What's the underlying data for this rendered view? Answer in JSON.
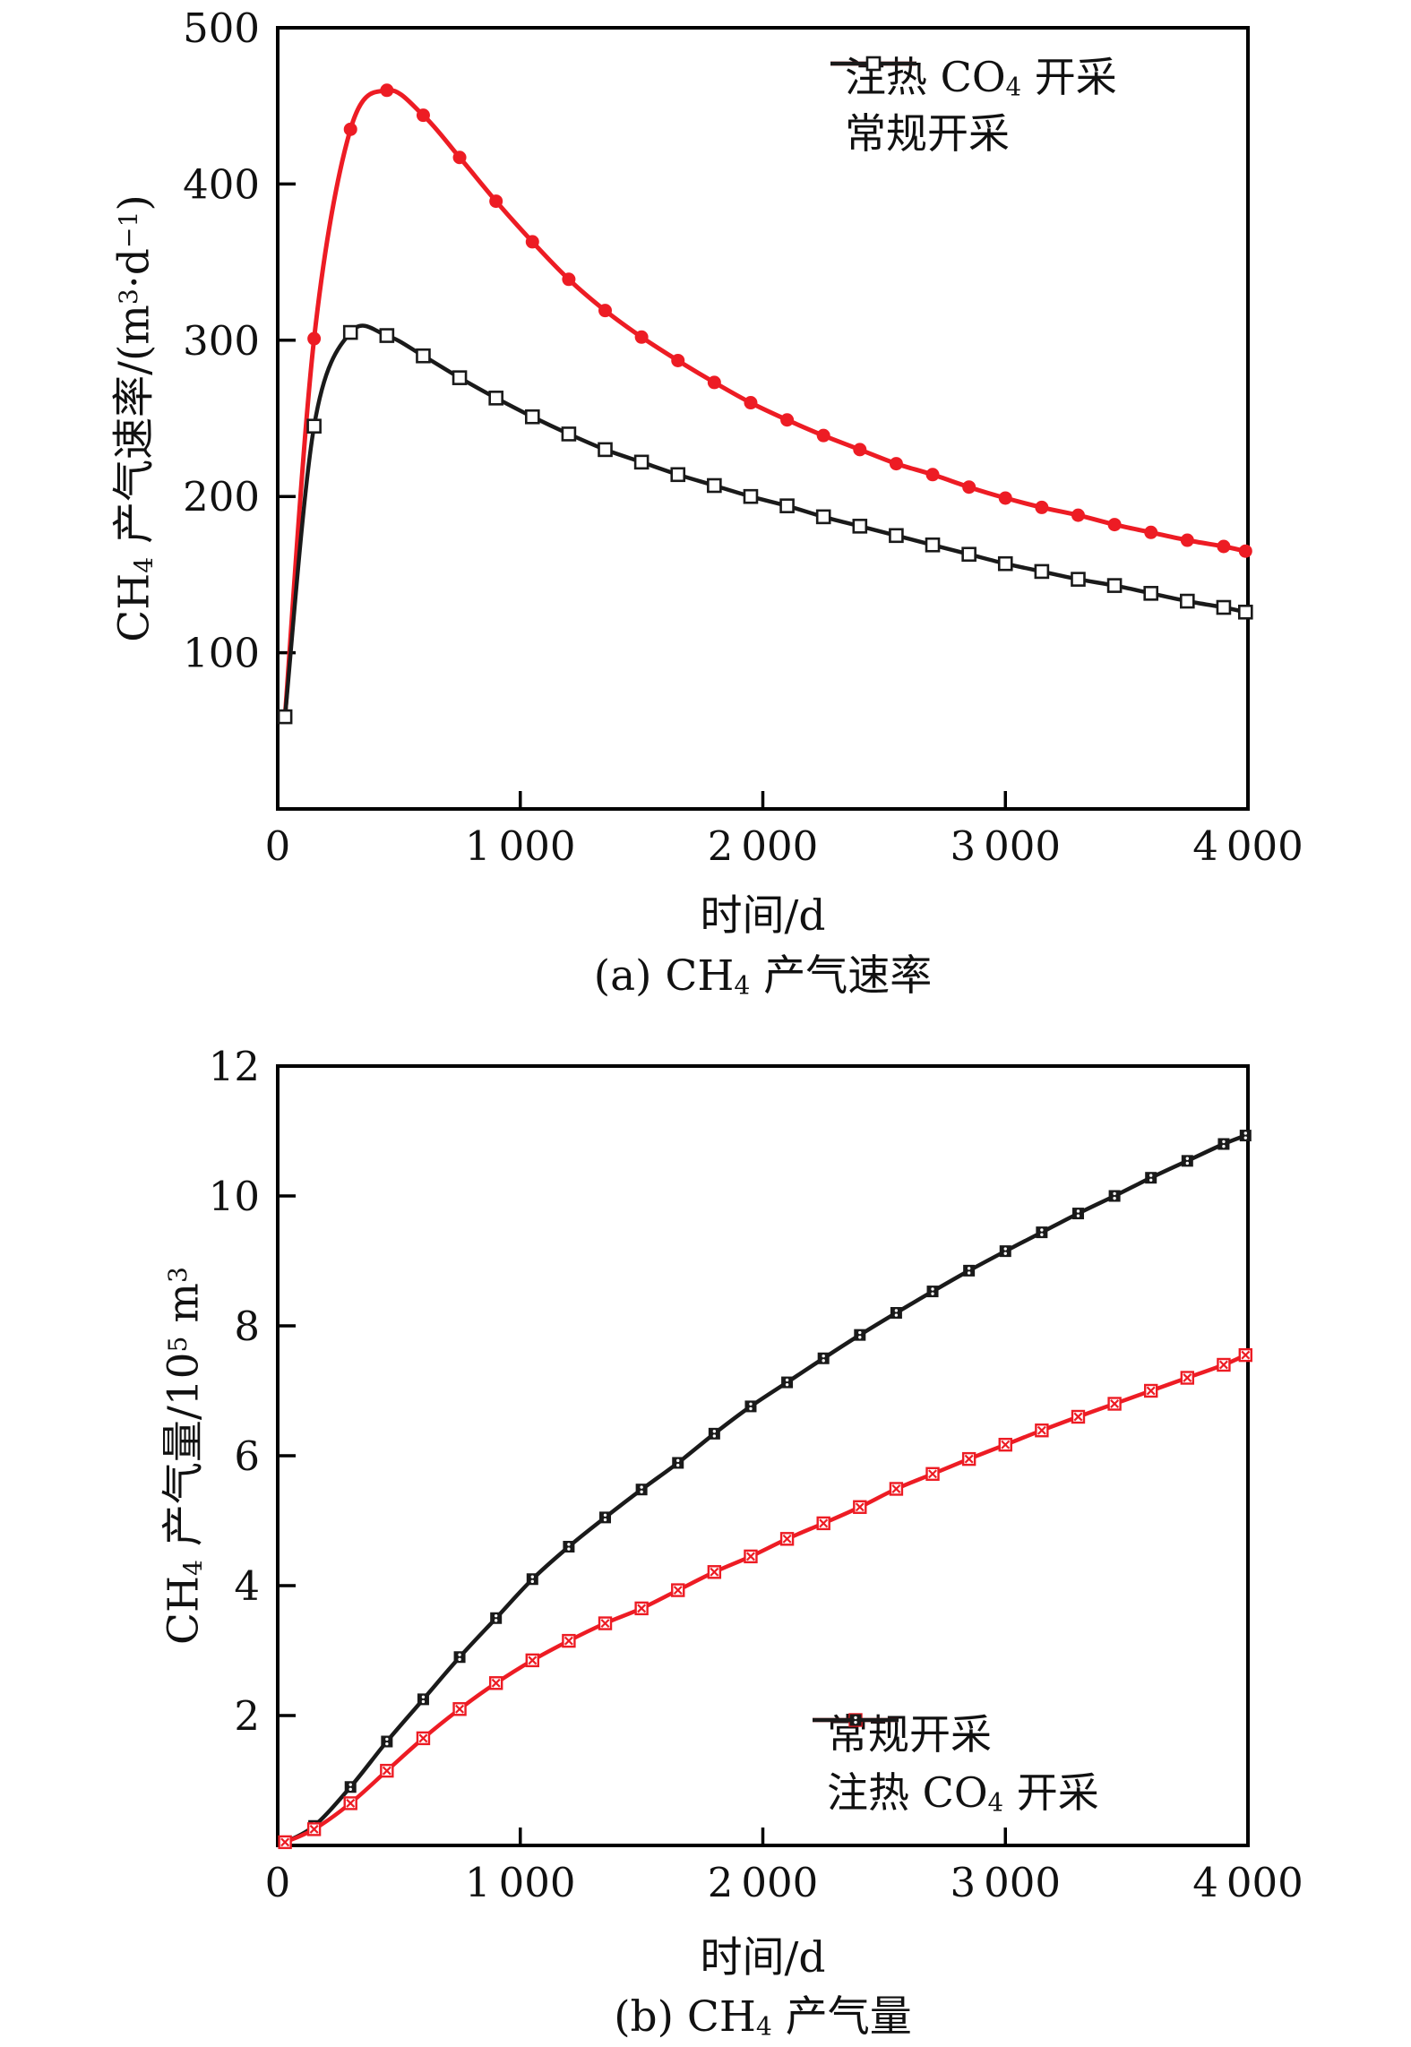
{
  "page": {
    "background": "#ffffff"
  },
  "colors": {
    "series_red": "#ed1c24",
    "series_black": "#1a1a1a",
    "axis": "#000000"
  },
  "chart_data": [
    {
      "id": "a",
      "type": "line",
      "caption_parts": [
        {
          "t": "(a) CH"
        },
        {
          "t": "4",
          "sub": true
        },
        {
          "t": " 产气速率"
        }
      ],
      "xlabel": "时间/d",
      "ylabel_parts": [
        {
          "t": "CH"
        },
        {
          "t": "4",
          "sub": true
        },
        {
          "t": " 产气速率/(m"
        },
        {
          "t": "3",
          "sup": true
        },
        {
          "t": "·d"
        },
        {
          "t": "−1",
          "sup": true
        },
        {
          "t": ")"
        }
      ],
      "xlim": [
        0,
        4000
      ],
      "ylim": [
        0,
        500
      ],
      "x_ticks": [
        {
          "v": 0,
          "label": "0"
        },
        {
          "v": 1000,
          "label": "1 000"
        },
        {
          "v": 2000,
          "label": "2 000"
        },
        {
          "v": 3000,
          "label": "3 000"
        },
        {
          "v": 4000,
          "label": "4 000"
        }
      ],
      "y_ticks": [
        {
          "v": 100,
          "label": "100"
        },
        {
          "v": 200,
          "label": "200"
        },
        {
          "v": 300,
          "label": "300"
        },
        {
          "v": 400,
          "label": "400"
        },
        {
          "v": 500,
          "label": "500"
        }
      ],
      "legend": {
        "position": "top-right",
        "entries": [
          {
            "series": "heated",
            "label_parts": [
              {
                "t": "注热 CO"
              },
              {
                "t": "4",
                "sub": true
              },
              {
                "t": " 开采"
              }
            ]
          },
          {
            "series": "conventional",
            "label_parts": [
              {
                "t": "常规开采"
              }
            ]
          }
        ]
      },
      "series": [
        {
          "name": "heated",
          "color": "#ed1c24",
          "marker": "circle-filled",
          "line_width": 5,
          "x": [
            30,
            150,
            300,
            450,
            600,
            750,
            900,
            1050,
            1200,
            1350,
            1500,
            1650,
            1800,
            1950,
            2100,
            2250,
            2400,
            2550,
            2700,
            2850,
            3000,
            3150,
            3300,
            3450,
            3600,
            3750,
            3900,
            3990
          ],
          "y": [
            59,
            301,
            435,
            460,
            444,
            417,
            389,
            363,
            339,
            319,
            302,
            287,
            273,
            260,
            249,
            239,
            230,
            221,
            214,
            206,
            199,
            193,
            188,
            182,
            177,
            172,
            168,
            165
          ]
        },
        {
          "name": "conventional",
          "color": "#1a1a1a",
          "marker": "square-open",
          "line_width": 4.5,
          "x": [
            30,
            150,
            300,
            450,
            600,
            750,
            900,
            1050,
            1200,
            1350,
            1500,
            1650,
            1800,
            1950,
            2100,
            2250,
            2400,
            2550,
            2700,
            2850,
            3000,
            3150,
            3300,
            3450,
            3600,
            3750,
            3900,
            3990
          ],
          "y": [
            59,
            245,
            305,
            303,
            290,
            276,
            263,
            251,
            240,
            230,
            222,
            214,
            207,
            200,
            194,
            187,
            181,
            175,
            169,
            163,
            157,
            152,
            147,
            143,
            138,
            133,
            129,
            126
          ]
        }
      ]
    },
    {
      "id": "b",
      "type": "line",
      "caption_parts": [
        {
          "t": "(b) CH"
        },
        {
          "t": "4",
          "sub": true
        },
        {
          "t": " 产气量"
        }
      ],
      "xlabel": "时间/d",
      "ylabel_parts": [
        {
          "t": "CH"
        },
        {
          "t": "4",
          "sub": true
        },
        {
          "t": " 产气量/10"
        },
        {
          "t": "5",
          "sup": true
        },
        {
          "t": " m"
        },
        {
          "t": "3",
          "sup": true
        }
      ],
      "xlim": [
        0,
        4000
      ],
      "ylim": [
        0,
        12
      ],
      "x_ticks": [
        {
          "v": 0,
          "label": "0"
        },
        {
          "v": 1000,
          "label": "1 000"
        },
        {
          "v": 2000,
          "label": "2 000"
        },
        {
          "v": 3000,
          "label": "3 000"
        },
        {
          "v": 4000,
          "label": "4 000"
        }
      ],
      "y_ticks": [
        {
          "v": 2,
          "label": "2"
        },
        {
          "v": 4,
          "label": "4"
        },
        {
          "v": 6,
          "label": "6"
        },
        {
          "v": 8,
          "label": "8"
        },
        {
          "v": 10,
          "label": "10"
        },
        {
          "v": 12,
          "label": "12"
        }
      ],
      "legend": {
        "position": "bottom-right",
        "entries": [
          {
            "series": "conventional",
            "label_parts": [
              {
                "t": "常规开采"
              }
            ]
          },
          {
            "series": "heated",
            "label_parts": [
              {
                "t": "注热 CO"
              },
              {
                "t": "4",
                "sub": true
              },
              {
                "t": " 开采"
              }
            ]
          }
        ]
      },
      "series": [
        {
          "name": "heated",
          "color": "#1a1a1a",
          "marker": "square-dots",
          "line_width": 4.5,
          "x": [
            30,
            150,
            300,
            450,
            600,
            750,
            900,
            1050,
            1200,
            1350,
            1500,
            1650,
            1800,
            1950,
            2100,
            2250,
            2400,
            2550,
            2700,
            2850,
            3000,
            3150,
            3300,
            3450,
            3600,
            3750,
            3900,
            3990
          ],
          "y": [
            0.05,
            0.3,
            0.9,
            1.6,
            2.25,
            2.9,
            3.5,
            4.1,
            4.6,
            5.05,
            5.48,
            5.89,
            6.34,
            6.76,
            7.13,
            7.5,
            7.86,
            8.2,
            8.53,
            8.85,
            9.15,
            9.44,
            9.73,
            10.0,
            10.28,
            10.54,
            10.8,
            10.93
          ]
        },
        {
          "name": "conventional",
          "color": "#ed1c24",
          "marker": "square-x",
          "line_width": 4.5,
          "x": [
            30,
            150,
            300,
            450,
            600,
            750,
            900,
            1050,
            1200,
            1350,
            1500,
            1650,
            1800,
            1950,
            2100,
            2250,
            2400,
            2550,
            2700,
            2850,
            3000,
            3150,
            3300,
            3450,
            3600,
            3750,
            3900,
            3990
          ],
          "y": [
            0.05,
            0.25,
            0.65,
            1.15,
            1.65,
            2.1,
            2.5,
            2.85,
            3.15,
            3.42,
            3.65,
            3.93,
            4.21,
            4.45,
            4.72,
            4.96,
            5.21,
            5.49,
            5.72,
            5.95,
            6.17,
            6.39,
            6.6,
            6.8,
            7.0,
            7.2,
            7.4,
            7.55
          ]
        }
      ]
    }
  ]
}
